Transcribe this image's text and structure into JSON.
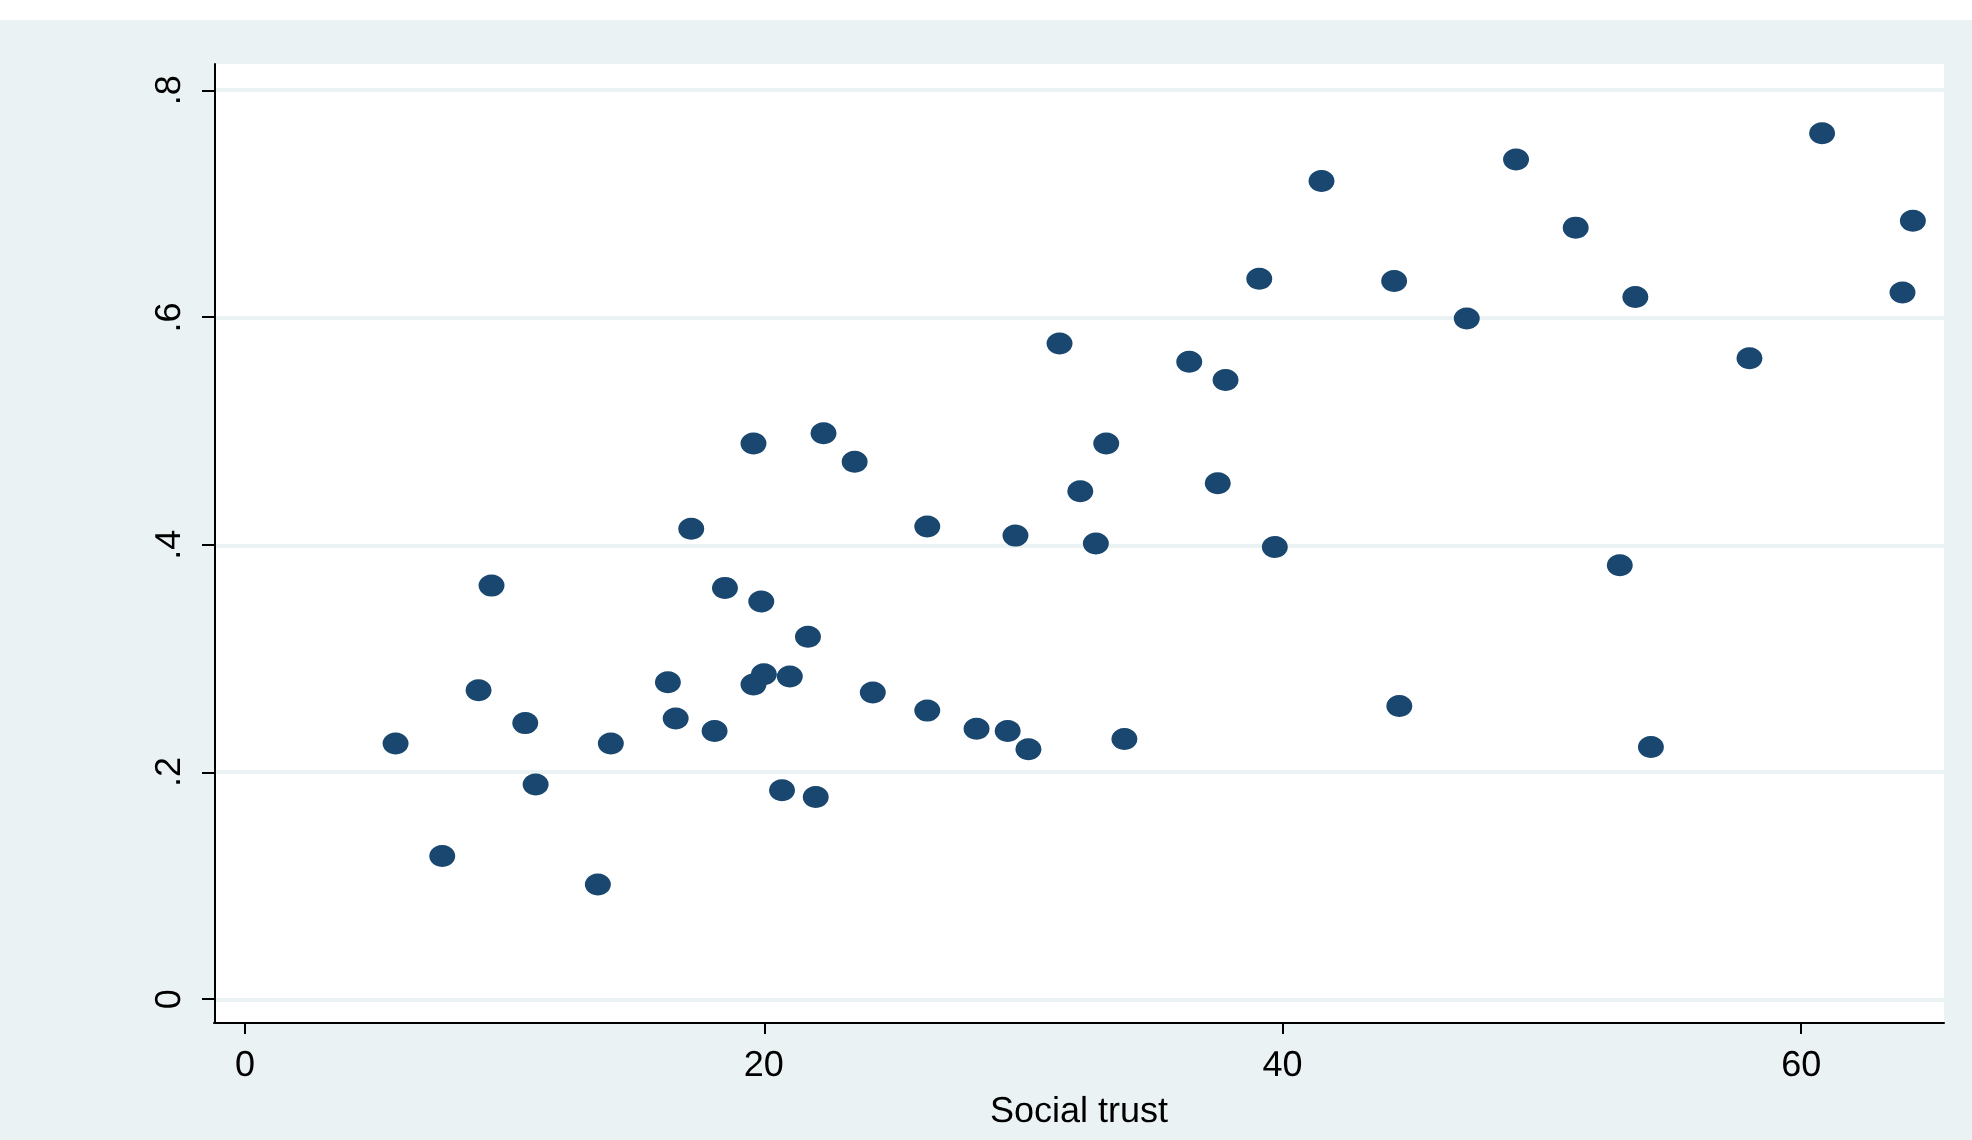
{
  "chart_data": {
    "type": "scatter",
    "xlabel": "Social trust",
    "color": "#1a476f",
    "marker": "circle",
    "grid": "y",
    "x": [
      5.8,
      7.6,
      9.0,
      9.5,
      10.8,
      11.2,
      13.6,
      14.1,
      16.3,
      16.6,
      17.2,
      18.1,
      18.5,
      19.6,
      19.6,
      19.9,
      20.0,
      20.7,
      21.0,
      21.7,
      22.0,
      22.3,
      23.5,
      24.2,
      26.3,
      26.3,
      28.2,
      29.4,
      29.7,
      30.2,
      31.4,
      32.2,
      32.8,
      33.2,
      33.9,
      36.4,
      37.5,
      37.8,
      39.1,
      39.7,
      41.5,
      44.3,
      44.5,
      47.1,
      49.0,
      51.3,
      53.6,
      53.0,
      54.2,
      58.0,
      60.8,
      63.9,
      64.3
    ],
    "values": [
      0.225,
      0.126,
      0.272,
      0.364,
      0.243,
      0.189,
      0.101,
      0.225,
      0.279,
      0.247,
      0.414,
      0.236,
      0.362,
      0.489,
      0.277,
      0.35,
      0.286,
      0.184,
      0.284,
      0.319,
      0.178,
      0.498,
      0.473,
      0.27,
      0.416,
      0.254,
      0.238,
      0.236,
      0.408,
      0.22,
      0.577,
      0.447,
      0.401,
      0.489,
      0.229,
      0.561,
      0.454,
      0.545,
      0.634,
      0.398,
      0.72,
      0.632,
      0.258,
      0.599,
      0.739,
      0.679,
      0.618,
      0.382,
      0.222,
      0.564,
      0.762,
      0.622,
      0.685
    ],
    "xlim": [
      -1.2,
      65.5
    ],
    "xticks": [
      0,
      20,
      40,
      60
    ],
    "ylim": [
      -0.02,
      0.823
    ],
    "yticks": [
      0,
      {
        "value": 0.2,
        "label": ".2"
      },
      {
        "value": 0.4,
        "label": ".4"
      },
      {
        "value": 0.6,
        "label": ".6"
      },
      {
        "value": 0.8,
        "label": ".8"
      }
    ]
  }
}
